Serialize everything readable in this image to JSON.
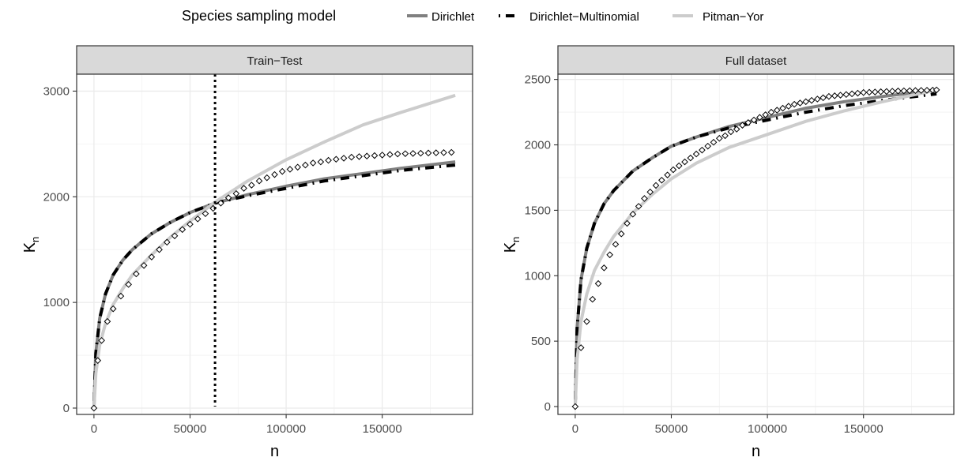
{
  "legend": {
    "title": "Species sampling model",
    "entries": [
      {
        "key": "dirichlet",
        "label": "Dirichlet",
        "color": "#808080",
        "dash": "solid"
      },
      {
        "key": "dm",
        "label": "Dirichlet−Multinomial",
        "color": "#000000",
        "dash": "dotdash"
      },
      {
        "key": "py",
        "label": "Pitman−Yor",
        "color": "#cccccc",
        "dash": "solid"
      }
    ]
  },
  "chart_data": [
    {
      "type": "line",
      "panel": "Train−Test",
      "xlabel": "n",
      "ylabel": "K",
      "ylabel_sub": "n",
      "xlim": [
        -9000,
        197000
      ],
      "ylim": [
        -60,
        3160
      ],
      "xticks": [
        0,
        50000,
        100000,
        150000
      ],
      "xtick_labels": [
        "0",
        "50000",
        "100000",
        "150000"
      ],
      "yticks": [
        0,
        1000,
        2000,
        3000
      ],
      "ytick_labels": [
        "0",
        "1000",
        "2000",
        "3000"
      ],
      "vline": 63000,
      "series": [
        {
          "name": "Dirichlet",
          "x": [
            0,
            1000,
            3000,
            6000,
            10000,
            15000,
            20000,
            30000,
            40000,
            50000,
            63000,
            80000,
            100000,
            120000,
            140000,
            160000,
            188000
          ],
          "y": [
            0,
            520,
            850,
            1080,
            1260,
            1400,
            1500,
            1650,
            1760,
            1850,
            1940,
            2020,
            2100,
            2170,
            2220,
            2270,
            2330
          ]
        },
        {
          "name": "Dirichlet−Multinomial",
          "x": [
            0,
            1000,
            3000,
            6000,
            10000,
            15000,
            20000,
            30000,
            40000,
            50000,
            63000,
            80000,
            100000,
            120000,
            140000,
            160000,
            188000
          ],
          "y": [
            0,
            520,
            850,
            1080,
            1260,
            1400,
            1500,
            1650,
            1760,
            1850,
            1940,
            2010,
            2080,
            2150,
            2200,
            2250,
            2300
          ]
        },
        {
          "name": "Pitman−Yor",
          "x": [
            0,
            1000,
            3000,
            6000,
            10000,
            15000,
            20000,
            30000,
            40000,
            50000,
            63000,
            80000,
            100000,
            120000,
            140000,
            160000,
            188000
          ],
          "y": [
            0,
            330,
            600,
            800,
            980,
            1130,
            1260,
            1450,
            1620,
            1770,
            1950,
            2150,
            2350,
            2520,
            2680,
            2800,
            2960
          ]
        }
      ],
      "observed": {
        "x": [
          0,
          2000,
          4000,
          7000,
          10000,
          14000,
          18000,
          22000,
          26000,
          30000,
          34000,
          38000,
          42000,
          46000,
          50000,
          54000,
          58000,
          62000,
          66000,
          70000,
          74000,
          78000,
          82000,
          86000,
          90000,
          94000,
          98000,
          102000,
          106000,
          110000,
          114000,
          118000,
          122000,
          126000,
          130000,
          134000,
          138000,
          142000,
          146000,
          150000,
          154000,
          158000,
          162000,
          166000,
          170000,
          174000,
          178000,
          182000,
          186000
        ],
        "y": [
          0,
          450,
          640,
          820,
          940,
          1060,
          1170,
          1270,
          1350,
          1430,
          1500,
          1570,
          1630,
          1690,
          1740,
          1790,
          1840,
          1890,
          1940,
          1990,
          2030,
          2080,
          2110,
          2150,
          2180,
          2210,
          2240,
          2260,
          2280,
          2300,
          2320,
          2330,
          2345,
          2355,
          2365,
          2375,
          2380,
          2385,
          2390,
          2395,
          2400,
          2405,
          2408,
          2410,
          2412,
          2414,
          2416,
          2418,
          2420
        ]
      }
    },
    {
      "type": "line",
      "panel": "Full dataset",
      "xlabel": "n",
      "ylabel": "K",
      "ylabel_sub": "n",
      "xlim": [
        -9000,
        197000
      ],
      "ylim": [
        -60,
        2540
      ],
      "xticks": [
        0,
        50000,
        100000,
        150000
      ],
      "xtick_labels": [
        "0",
        "50000",
        "100000",
        "150000"
      ],
      "yticks": [
        0,
        500,
        1000,
        1500,
        2000,
        2500
      ],
      "ytick_labels": [
        "0",
        "500",
        "1000",
        "1500",
        "2000",
        "2500"
      ],
      "series": [
        {
          "name": "Dirichlet",
          "x": [
            0,
            1000,
            3000,
            6000,
            10000,
            15000,
            20000,
            30000,
            40000,
            50000,
            63000,
            80000,
            100000,
            120000,
            140000,
            160000,
            188000
          ],
          "y": [
            0,
            600,
            970,
            1210,
            1400,
            1550,
            1650,
            1800,
            1900,
            1990,
            2060,
            2140,
            2210,
            2280,
            2330,
            2370,
            2420
          ]
        },
        {
          "name": "Dirichlet−Multinomial",
          "x": [
            0,
            1000,
            3000,
            6000,
            10000,
            15000,
            20000,
            30000,
            40000,
            50000,
            63000,
            80000,
            100000,
            120000,
            140000,
            160000,
            188000
          ],
          "y": [
            0,
            600,
            970,
            1210,
            1400,
            1550,
            1650,
            1800,
            1900,
            1990,
            2060,
            2130,
            2190,
            2250,
            2300,
            2340,
            2390
          ]
        },
        {
          "name": "Pitman−Yor",
          "x": [
            0,
            1000,
            3000,
            6000,
            10000,
            15000,
            20000,
            30000,
            40000,
            50000,
            63000,
            80000,
            100000,
            120000,
            140000,
            160000,
            188000
          ],
          "y": [
            0,
            360,
            650,
            860,
            1040,
            1180,
            1300,
            1480,
            1620,
            1740,
            1860,
            1980,
            2080,
            2180,
            2260,
            2330,
            2420
          ]
        }
      ],
      "observed": {
        "x": [
          0,
          3000,
          6000,
          9000,
          12000,
          15000,
          18000,
          21000,
          24000,
          27000,
          30000,
          33000,
          36000,
          39000,
          42000,
          45000,
          48000,
          51000,
          54000,
          57000,
          60000,
          63000,
          66000,
          69000,
          72000,
          75000,
          78000,
          81000,
          84000,
          87000,
          90000,
          93000,
          96000,
          99000,
          102000,
          105000,
          108000,
          111000,
          114000,
          117000,
          120000,
          123000,
          126000,
          129000,
          132000,
          135000,
          138000,
          141000,
          144000,
          147000,
          150000,
          153000,
          156000,
          159000,
          162000,
          165000,
          168000,
          171000,
          174000,
          177000,
          180000,
          183000,
          186000,
          188000
        ],
        "y": [
          0,
          450,
          650,
          820,
          940,
          1060,
          1160,
          1240,
          1320,
          1400,
          1470,
          1530,
          1590,
          1640,
          1690,
          1730,
          1770,
          1810,
          1840,
          1870,
          1900,
          1930,
          1960,
          1990,
          2020,
          2050,
          2070,
          2100,
          2120,
          2150,
          2170,
          2190,
          2210,
          2230,
          2250,
          2265,
          2280,
          2295,
          2310,
          2320,
          2330,
          2340,
          2350,
          2360,
          2370,
          2375,
          2380,
          2385,
          2390,
          2395,
          2400,
          2402,
          2404,
          2406,
          2408,
          2410,
          2412,
          2413,
          2414,
          2415,
          2416,
          2417,
          2418,
          2420
        ]
      }
    }
  ]
}
